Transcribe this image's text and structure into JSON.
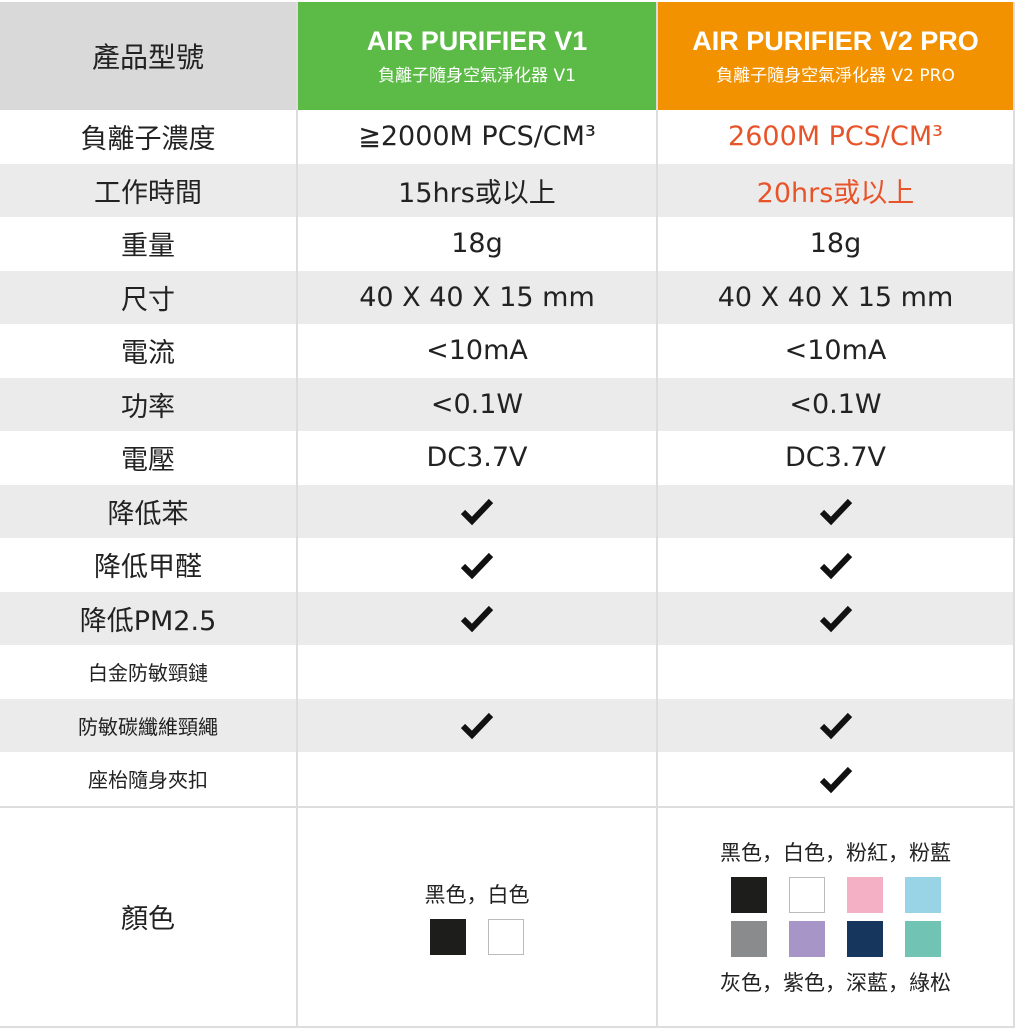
{
  "header": {
    "label": "產品型號",
    "v1": {
      "title": "AIR PURIFIER V1",
      "subtitle": "負離子隨身空氣淨化器 V1"
    },
    "v2": {
      "title": "AIR PURIFIER V2 PRO",
      "subtitle": "負離子隨身空氣淨化器 V2 PRO"
    }
  },
  "rows": [
    {
      "label": "負離子濃度",
      "v1": "≧2000M PCS/CM³",
      "v2": "2600M PCS/CM³",
      "highlight": true
    },
    {
      "label": "工作時間",
      "v1": "15hrs或以上",
      "v2": "20hrs或以上",
      "highlight": true
    },
    {
      "label": "重量",
      "v1": "18g",
      "v2": "18g"
    },
    {
      "label": "尺寸",
      "v1": "40 X 40 X 15 mm",
      "v2": "40 X 40 X 15 mm"
    },
    {
      "label": "電流",
      "v1": "<10mA",
      "v2": "<10mA"
    },
    {
      "label": "功率",
      "v1": "<0.1W",
      "v2": "<0.1W"
    },
    {
      "label": "電壓",
      "v1": "DC3.7V",
      "v2": "DC3.7V"
    },
    {
      "label": "降低苯",
      "v1check": true,
      "v2check": true
    },
    {
      "label": "降低甲醛",
      "v1check": true,
      "v2check": true
    },
    {
      "label": "降低PM2.5",
      "v1check": true,
      "v2check": true
    },
    {
      "label": "白金防敏頸鏈",
      "v1check": false,
      "v2check": false,
      "small": true
    },
    {
      "label": "防敏碳纖維頸繩",
      "v1check": true,
      "v2check": true,
      "small": true
    },
    {
      "label": "座枱隨身夾扣",
      "v1check": false,
      "v2check": true,
      "small": true
    }
  ],
  "colors": {
    "label": "顏色",
    "v1": {
      "names": "黑色，白色",
      "swatches": [
        "#1d1d1b",
        "#ffffff"
      ]
    },
    "v2": {
      "names_top": "黑色，白色，粉紅，粉藍",
      "names_bottom": "灰色，紫色，深藍，綠松",
      "swatches": [
        "#1d1d1b",
        "#ffffff",
        "#f4b1c6",
        "#98d3e6",
        "#898b8c",
        "#a895c8",
        "#17365d",
        "#71c3b4"
      ]
    }
  },
  "accent": {
    "green": "#5cbb46",
    "orange": "#f39200",
    "highlight_text": "#e8542a"
  }
}
